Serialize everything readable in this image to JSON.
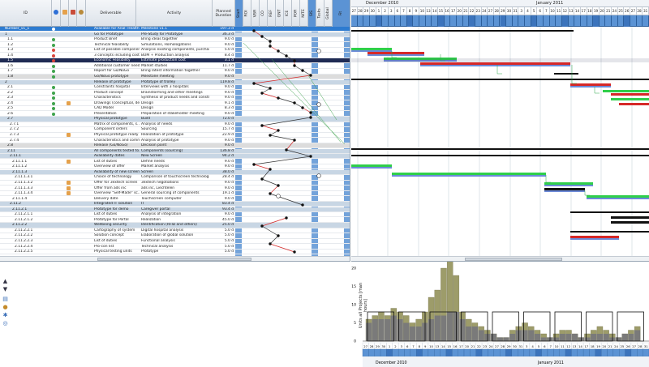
{
  "grid": {
    "headers": {
      "id": "ID",
      "deliverable": "Deliverable",
      "activity": "Activity",
      "duration": "Planned Duration",
      "phase_cols": [
        "Start",
        "ROI",
        "VBR",
        "CO",
        "REF",
        "GNT",
        "ICE",
        "POR",
        "NITE",
        "SIS",
        "Tasks",
        "Global",
        "Fit"
      ]
    },
    "rows": [
      {
        "id": "Number_v1_1",
        "del": "Available for Anal: Health...",
        "act": "Milestone v1.1",
        "dur": "197.3 d",
        "kind": "selected-top",
        "st": "#ffffff"
      },
      {
        "id": "1",
        "del": "Go for Prototype",
        "act": "Pre-Study for Prototype",
        "dur": "36.3 d",
        "kind": "summary",
        "st": ""
      },
      {
        "id": "1.1",
        "del": "Product Brief",
        "act": "Bring ideas together",
        "dur": "9.0 d",
        "kind": "",
        "st": "#3fa34d"
      },
      {
        "id": "1.2",
        "del": "Technical feasibility",
        "act": "Simulations, Homologations",
        "dur": "9.0 d",
        "kind": "",
        "st": "#3fa34d"
      },
      {
        "id": "1.3",
        "del": "List of possible components",
        "act": "Analysis existing components, purchasing",
        "dur": "5.0 d",
        "kind": "",
        "st": "#d9453b"
      },
      {
        "id": "1.4",
        "del": "3 concepts including costs",
        "act": "BOM + Production analysis",
        "dur": "8.4 d",
        "kind": "",
        "st": "#d9453b"
      },
      {
        "id": "1.5",
        "del": "Economic Feasibility",
        "act": "Estimate production cost",
        "dur": "3.1 d",
        "kind": "highlight",
        "st": "#d9453b"
      },
      {
        "id": "1.6",
        "del": "Additional customer needs",
        "act": "Market studies",
        "dur": "11.7 d",
        "kind": "",
        "st": "#3fa34d"
      },
      {
        "id": "1.7",
        "del": "Report for Go/NoGo",
        "act": "Bring latest information together",
        "dur": "9.0 d",
        "kind": "",
        "st": "#3fa34d"
      },
      {
        "id": "1.8",
        "del": "Go/NoGo prototype",
        "act": "Milestone meeting",
        "dur": "9.0 d",
        "kind": "grey",
        "st": "#3fa34d"
      },
      {
        "id": "2",
        "del": "Release of prototype",
        "act": "Prototype of trolley",
        "dur": "119.8 d",
        "kind": "summary",
        "st": ""
      },
      {
        "id": "2.1",
        "del": "Constraints hospital",
        "act": "Interviews with 3 hospitals",
        "dur": "9.0 d",
        "kind": "",
        "st": "#3fa34d"
      },
      {
        "id": "2.2",
        "del": "Product concept",
        "act": "Brainstorming and other meetings",
        "dur": "9.0 d",
        "kind": "",
        "st": "#3fa34d"
      },
      {
        "id": "2.3",
        "del": "Characteristics",
        "act": "Synthesis of product needs and constr...",
        "dur": "9.0 d",
        "kind": "",
        "st": "#3fa34d"
      },
      {
        "id": "2.4",
        "del": "Drawings (conceptual, de...",
        "act": "Design",
        "dur": "9.1 d",
        "kind": "",
        "st": "#3fa34d"
      },
      {
        "id": "2.5",
        "del": "CAD Model",
        "act": "Design",
        "dur": "8.3 d",
        "kind": "",
        "st": "#3fa34d"
      },
      {
        "id": "2.6",
        "del": "Presentation",
        "act": "Preparation of stakeholder meeting",
        "dur": "9.0 d",
        "kind": "",
        "st": "#3fa34d"
      },
      {
        "id": "2.7",
        "del": "Physical prototype",
        "act": "Build",
        "dur": "72.0 d",
        "kind": "summary",
        "st": ""
      },
      {
        "id": "2.7.1",
        "del": "Matrix of components, s...",
        "act": "Analysis of needs",
        "dur": "9.0 d",
        "kind": "",
        "st": ""
      },
      {
        "id": "2.7.2",
        "del": "Component orders",
        "act": "Sourcing",
        "dur": "15.7 d",
        "kind": "",
        "st": ""
      },
      {
        "id": "2.7.3",
        "del": "Physical prototype ready",
        "act": "Realization of prototype",
        "dur": "22.9 d",
        "kind": "",
        "st": ""
      },
      {
        "id": "2.7.4",
        "del": "Characteristics and comm...",
        "act": "Analysis of prototype",
        "dur": "9.0 d",
        "kind": "",
        "st": ""
      },
      {
        "id": "2.8",
        "del": "Release (Go/NoGo)",
        "act": "Decision point",
        "dur": "9.0 d",
        "kind": "grey",
        "st": ""
      },
      {
        "id": "2.11",
        "del": "All components tested to...",
        "act": "Components (sourcing)",
        "dur": "136.8 d",
        "kind": "summary",
        "st": ""
      },
      {
        "id": "2.11.1",
        "del": "Availability dates",
        "act": "New Screen",
        "dur": "94.2 d",
        "kind": "summary",
        "st": ""
      },
      {
        "id": "2.11.1.1",
        "del": "List of duties",
        "act": "Define needs",
        "dur": "9.0 d",
        "kind": "",
        "st": ""
      },
      {
        "id": "2.11.1.2",
        "del": "Overview of offer",
        "act": "Market analysis",
        "dur": "9.0 d",
        "kind": "",
        "st": ""
      },
      {
        "id": "2.11.1.3",
        "del": "Availability of new screen",
        "act": "Screen",
        "dur": "38.0 d",
        "kind": "summary",
        "st": ""
      },
      {
        "id": "2.11.1.3.1",
        "del": "Choice of technology",
        "act": "Comparison of touchscreen technologies",
        "dur": "28.4 d",
        "kind": "",
        "st": ""
      },
      {
        "id": "2.11.1.3.2",
        "del": "Offer for 3extech screen",
        "act": "3extech negotiations",
        "dur": "9.0 d",
        "kind": "",
        "st": ""
      },
      {
        "id": "2.11.1.3.3",
        "del": "Offer from ads inc",
        "act": "ads inc, Liechtelen",
        "dur": "9.0 d",
        "kind": "",
        "st": ""
      },
      {
        "id": "2.11.1.3.4",
        "del": "Overview \"Self-Made\" sc...",
        "act": "General sourcing of components",
        "dur": "19.1 d",
        "kind": "",
        "st": ""
      },
      {
        "id": "2.11.1.4",
        "del": "Delivery date",
        "act": "Touchscreen computer",
        "dur": "9.0 d",
        "kind": "",
        "st": ""
      },
      {
        "id": "2.11.2",
        "del": "Integrated IT solution",
        "act": "IT",
        "dur": "83.4 d",
        "kind": "summary",
        "st": ""
      },
      {
        "id": "2.11.2.1",
        "del": "Prototype for demo",
        "act": "Caregiver portal",
        "dur": "93.4 d",
        "kind": "summary",
        "st": ""
      },
      {
        "id": "2.11.2.1.1",
        "del": "List of duties",
        "act": "Analysis of integration",
        "dur": "9.0 d",
        "kind": "",
        "st": ""
      },
      {
        "id": "2.11.2.1.2",
        "del": "Prototype for Portal",
        "act": "Realization",
        "dur": "45.0 d",
        "kind": "",
        "st": ""
      },
      {
        "id": "2.11.2.2",
        "del": "Wellbeing security",
        "act": "Identification (RFID and others)",
        "dur": "25.0 d",
        "kind": "summary",
        "st": ""
      },
      {
        "id": "2.11.2.2.1",
        "del": "Cartography of system",
        "act": "Digital hospital analysis",
        "dur": "5.0 d",
        "kind": "",
        "st": ""
      },
      {
        "id": "2.11.2.2.2",
        "del": "Solution concept",
        "act": "Elaboration of global solution",
        "dur": "5.0 d",
        "kind": "",
        "st": ""
      },
      {
        "id": "2.11.2.2.3",
        "del": "List of duties",
        "act": "Functional analysis",
        "dur": "5.0 d",
        "kind": "",
        "st": ""
      },
      {
        "id": "2.11.2.2.4",
        "del": "Pro-con list",
        "act": "Technical analysis",
        "dur": "5.0 d",
        "kind": "",
        "st": ""
      },
      {
        "id": "2.11.2.2.5",
        "del": "Physical testing units",
        "act": "Prototype",
        "dur": "5.0 d",
        "kind": "",
        "st": ""
      }
    ]
  },
  "gantt": {
    "months": [
      "December 2010",
      "January 2011"
    ],
    "day_labels": [
      "27",
      "28",
      "29",
      "30",
      "1",
      "2",
      "3",
      "6",
      "7",
      "8",
      "9",
      "10",
      "13",
      "14",
      "15",
      "16",
      "17",
      "20",
      "21",
      "22",
      "23",
      "24",
      "27",
      "28",
      "29",
      "30",
      "31",
      "3",
      "4",
      "5",
      "6",
      "7",
      "10",
      "11",
      "12",
      "13",
      "14",
      "17",
      "18",
      "19",
      "20",
      "21",
      "24",
      "25",
      "26",
      "27",
      "28",
      "31"
    ]
  },
  "histogram": {
    "y_label": "Units all Projects [man hours]",
    "y_ticks": [
      "0",
      "5",
      "10",
      "15",
      "20"
    ],
    "months": [
      "December 2010",
      "January 2011"
    ]
  },
  "colors": {
    "header_blue": "#5b93d4",
    "selected_row": "#2d7bd0",
    "highlight_row": "#1f2b54",
    "summary_row": "#c8d6e4",
    "bar_red": "#d62828",
    "bar_green": "#2fcf4a",
    "bar_black": "#111111",
    "bar_blue": "#6c8ad8",
    "hist_olive": "#9d9c6a",
    "hist_grey": "#7a7a7a"
  },
  "tools": {
    "icons": [
      "arrow-up-icon",
      "arrow-down-icon",
      "filter-icon",
      "person-icon",
      "settings-icon",
      "zoom-icon"
    ]
  }
}
